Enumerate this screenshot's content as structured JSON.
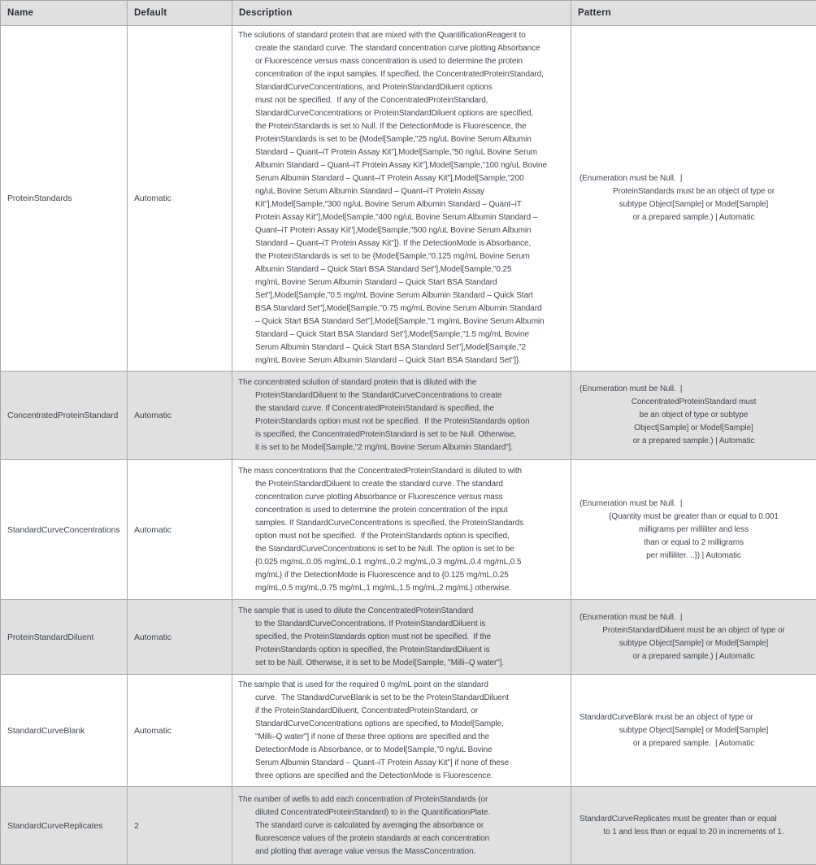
{
  "table": {
    "columns": {
      "name": "Name",
      "default": "Default",
      "description": "Description",
      "pattern": "Pattern"
    },
    "rows": [
      {
        "name": "ProteinStandards",
        "default": "Automatic",
        "description": "The solutions of standard protein that are mixed with the QuantificationReagent to\ncreate the standard curve. The standard concentration curve plotting Absorbance\nor Fluorescence versus mass concentration is used to determine the protein\nconcentration of the input samples. If specified, the ConcentratedProteinStandard,\nStandardCurveConcentrations, and ProteinStandardDiluent options\nmust not be specified.  If any of the ConcentratedProteinStandard,\nStandardCurveConcentrations or ProteinStandardDiluent options are specified,\nthe ProteinStandards is set to Null. If the DetectionMode is Fluorescence, the\nProteinStandards is set to be {Model[Sample,\"25 ng/uL Bovine Serum Albumin\nStandard – Quant–iT Protein Assay Kit\"],Model[Sample,\"50 ng/uL Bovine Serum\nAlbumin Standard – Quant–iT Protein Assay Kit\"],Model[Sample,\"100 ng/uL Bovine\nSerum Albumin Standard – Quant–iT Protein Assay Kit\"],Model[Sample,\"200\nng/uL Bovine Serum Albumin Standard – Quant–iT Protein Assay\nKit\"],Model[Sample,\"300 ng/uL Bovine Serum Albumin Standard – Quant–iT\nProtein Assay Kit\"],Model[Sample,\"400 ng/uL Bovine Serum Albumin Standard –\nQuant–iT Protein Assay Kit\"],Model[Sample,\"500 ng/uL Bovine Serum Albumin\nStandard – Quant–iT Protein Assay Kit\"]}. If the DetectionMode is Absorbance,\nthe ProteinStandards is set to be {Model[Sample,\"0.125 mg/mL Bovine Serum\nAlbumin Standard – Quick Start BSA Standard Set\"],Model[Sample,\"0.25\nmg/mL Bovine Serum Albumin Standard – Quick Start BSA Standard\nSet\"],Model[Sample,\"0.5 mg/mL Bovine Serum Albumin Standard – Quick Start\nBSA Standard Set\"],Model[Sample,\"0.75 mg/mL Bovine Serum Albumin Standard\n– Quick Start BSA Standard Set\"],Model[Sample,\"1 mg/mL Bovine Serum Albumin\nStandard – Quick Start BSA Standard Set\"],Model[Sample,\"1.5 mg/mL Bovine\nSerum Albumin Standard – Quick Start BSA Standard Set\"],Model[Sample,\"2\nmg/mL Bovine Serum Albumin Standard – Quick Start BSA Standard Set\"]}.",
        "pattern_first": "(Enumeration must be Null.  |",
        "pattern_rest": "ProteinStandards must be an object of type or\nsubtype Object[Sample] or Model[Sample]\nor a prepared sample.) | Automatic"
      },
      {
        "name": "ConcentratedProteinStandard",
        "default": "Automatic",
        "description": "The concentrated solution of standard protein that is diluted with the\nProteinStandardDiluent to the StandardCurveConcentrations to create\nthe standard curve. If ConcentratedProteinStandard is specified, the\nProteinStandards option must not be specified.  If the ProteinStandards option\nis specified, the ConcentratedProteinStandard is set to be Null. Otherwise,\nit is set to be Model[Sample,\"2 mg/mL Bovine Serum Albumin Standard\"].",
        "pattern_first": "(Enumeration must be Null.  |",
        "pattern_rest": "ConcentratedProteinStandard must\nbe an object of type or subtype\nObject[Sample] or Model[Sample]\nor a prepared sample.) | Automatic"
      },
      {
        "name": "StandardCurveConcentrations",
        "default": "Automatic",
        "description": "The mass concentrations that the ConcentratedProteinStandard is diluted to with\nthe ProteinStandardDiluent to create the standard curve. The standard\nconcentration curve plotting Absorbance or Fluorescence versus mass\nconcentration is used to determine the protein concentration of the input\nsamples. If StandardCurveConcentrations is specified, the ProteinStandards\noption must not be specified.  If the ProteinStandards option is specified,\nthe StandardCurveConcentrations is set to be Null. The option is set to be\n{0.025 mg/mL,0.05 mg/mL,0.1 mg/mL,0.2 mg/mL,0.3 mg/mL,0.4 mg/mL,0.5\nmg/mL} if the DetectionMode is Fluorescence and to {0.125 mg/mL,0.25\nmg/mL,0.5 mg/mL,0.75 mg/mL,1 mg/mL,1.5 mg/mL,2 mg/mL} otherwise.",
        "pattern_first": "(Enumeration must be Null.  |",
        "pattern_rest": "{Quantity must be greater than or equal to 0.001\nmilligrams per milliliter and less\nthan or equal to 2 milligrams\nper milliliter. ..}) | Automatic"
      },
      {
        "name": "ProteinStandardDiluent",
        "default": "Automatic",
        "description": "The sample that is used to dilute the ConcentratedProteinStandard\nto the StandardCurveConcentrations. If ProteinStandardDiluent is\nspecified, the ProteinStandards option must not be specified.  If the\nProteinStandards option is specified, the ProteinStandardDiluent is\nset to be Null. Otherwise, it is set to be Model[Sample, \"Milli–Q water\"].",
        "pattern_first": "(Enumeration must be Null.  |",
        "pattern_rest": "ProteinStandardDiluent must be an object of type or\nsubtype Object[Sample] or Model[Sample]\nor a prepared sample.) | Automatic"
      },
      {
        "name": "StandardCurveBlank",
        "default": "Automatic",
        "description": "The sample that is used for the required 0 mg/mL point on the standard\ncurve.  The StandardCurveBlank is set to be the ProteinStandardDiluent\nif the ProteinStandardDiluent, ConcentratedProteinStandard, or\nStandardCurveConcentrations options are specified, to Model[Sample,\n\"Milli–Q water\"] if none of these three options are specified and the\nDetectionMode is Absorbance, or to Model[Sample,\"0 ng/uL Bovine\nSerum Albumin Standard – Quant–iT Protein Assay Kit\"] if none of these\nthree options are specified and the DetectionMode is Fluorescence.",
        "pattern_first": "StandardCurveBlank must be an object of type or",
        "pattern_rest": "subtype Object[Sample] or Model[Sample]\nor a prepared sample.  | Automatic"
      },
      {
        "name": "StandardCurveReplicates",
        "default": "2",
        "description": "The number of wells to add each concentration of ProteinStandards (or\ndiluted ConcentratedProteinStandard) to in the QuantificationPlate.\nThe standard curve is calculated by averaging the absorbance or\nfluorescence values of the protein standards at each concentration\nand plotting that average value versus the MassConcentration.",
        "pattern_first": "StandardCurveReplicates must be greater than or equal",
        "pattern_rest": "to 1 and less than or equal to 20 in increments of 1."
      }
    ]
  }
}
